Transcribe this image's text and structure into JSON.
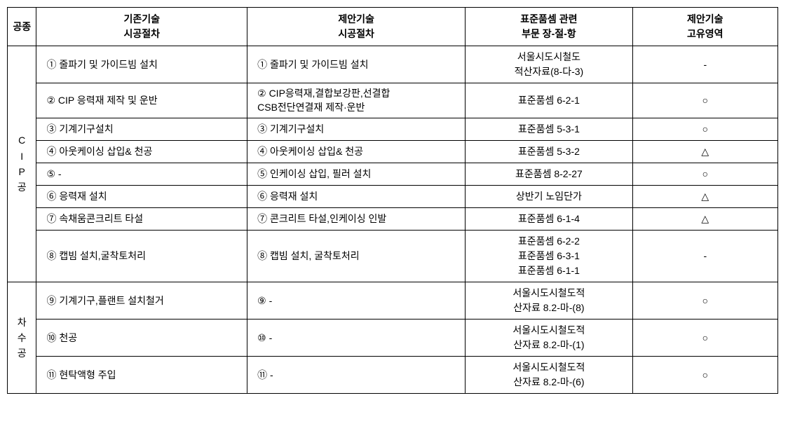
{
  "header": {
    "col1": "공종",
    "col2a": "기존기술",
    "col2b": "시공절차",
    "col3a": "제안기술",
    "col3b": "시공절차",
    "col4a": "표준품셈 관련",
    "col4b": "부문 장-절-항",
    "col5a": "제안기술",
    "col5b": "고유영역"
  },
  "cat1": "C\nI\nP\n공",
  "cat2": "차\n수\n공",
  "rows": [
    {
      "existing": "① 줄파기 및 가이드빔 설치",
      "proposed": "① 줄파기 및 가이드빔 설치",
      "standard": "서울시도시철도\n적산자료(8-다-3)",
      "unique": "-"
    },
    {
      "existing": "② CIP 응력재 제작 및 운반",
      "proposed": "②  CIP응력재,결합보강판,선결합\nCSB전단연결재 제작·운반",
      "standard": "표준품셈 6-2-1",
      "unique": "○"
    },
    {
      "existing": "③ 기계기구설치",
      "proposed": "③ 기계기구설치",
      "standard": "표준품셈 5-3-1",
      "unique": "○"
    },
    {
      "existing": "④ 아웃케이싱 삽입& 천공",
      "proposed": "④ 아웃케이싱 삽입& 천공",
      "standard": "표준품셈 5-3-2",
      "unique": "△"
    },
    {
      "existing": "⑤           -",
      "proposed": "⑤ 인케이싱 삽입, 필러 설치",
      "standard": "표준품셈 8-2-27",
      "unique": "○"
    },
    {
      "existing": "⑥ 응력재 설치",
      "proposed": "⑥ 응력재 설치",
      "standard": "상반기 노임단가",
      "unique": "△"
    },
    {
      "existing": "⑦ 속채움콘크리트 타설",
      "proposed": "⑦ 콘크리트 타설,인케이싱 인발",
      "standard": "표준품셈 6-1-4",
      "unique": "△"
    },
    {
      "existing": "⑧ 캡빔 설치,굴착토처리",
      "proposed": "⑧ 캡빔 설치, 굴착토처리",
      "standard": "표준품셈 6-2-2\n표준품셈 6-3-1\n표준품셈 6-1-1",
      "unique": "-"
    },
    {
      "existing": "⑨ 기계기구,플랜트 설치철거",
      "proposed": "⑨           -",
      "standard": "서울시도시철도적\n산자료 8.2-마-(8)",
      "unique": "○"
    },
    {
      "existing": "⑩ 천공",
      "proposed": "⑩           -",
      "standard": "서울시도시철도적\n산자료 8.2-마-(1)",
      "unique": "○"
    },
    {
      "existing": "⑪ 현탁액형 주입",
      "proposed": "⑪           -",
      "standard": "서울시도시철도적\n산자료 8.2-마-(6)",
      "unique": "○"
    }
  ]
}
